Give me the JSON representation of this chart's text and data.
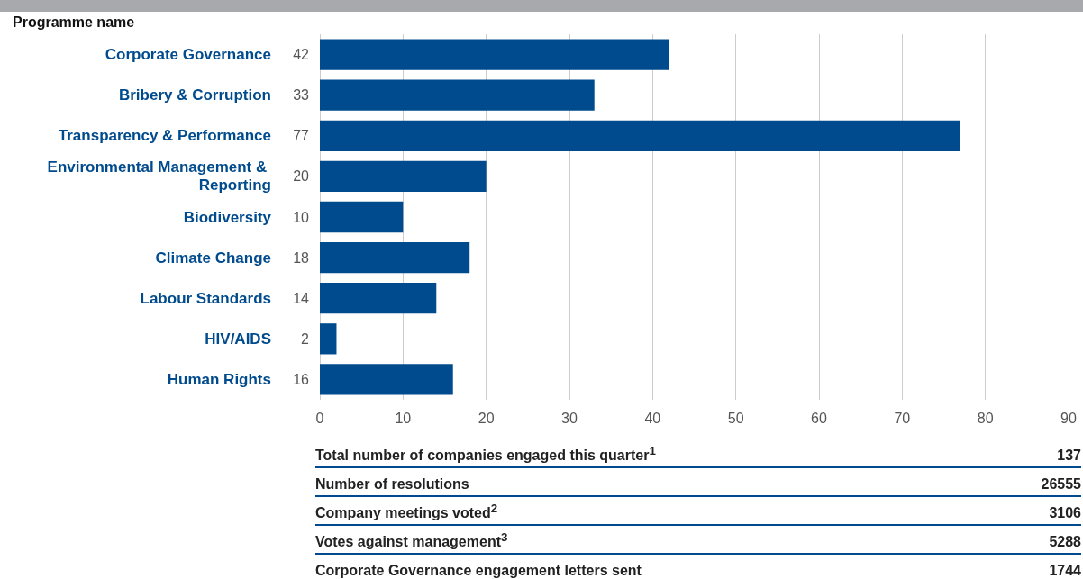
{
  "chart_data": {
    "type": "bar",
    "orientation": "horizontal",
    "ylabel": "Programme name",
    "categories": [
      "Corporate Governance",
      "Bribery & Corruption",
      "Transparency & Performance",
      "Environmental Management & Reporting",
      "Biodiversity",
      "Climate Change",
      "Labour Standards",
      "HIV/AIDS",
      "Human Rights"
    ],
    "values": [
      42,
      33,
      77,
      20,
      10,
      18,
      14,
      2,
      16
    ],
    "color": "#004b8d",
    "data_labels": true,
    "grid": "x",
    "xlim": [
      0,
      90
    ],
    "xticks": [
      0,
      10,
      20,
      30,
      40,
      50,
      60,
      70,
      80,
      90
    ],
    "annotations": [
      "Total number of companies engaged this quarter$^{1}$",
      "137",
      "Number of resolutions",
      "26555",
      "Company meetings voted$^{2}$",
      "3106",
      "Votes against management$^{3}$",
      "5288",
      "Corporate Governance engagement letters sent",
      "1744"
    ]
  }
}
